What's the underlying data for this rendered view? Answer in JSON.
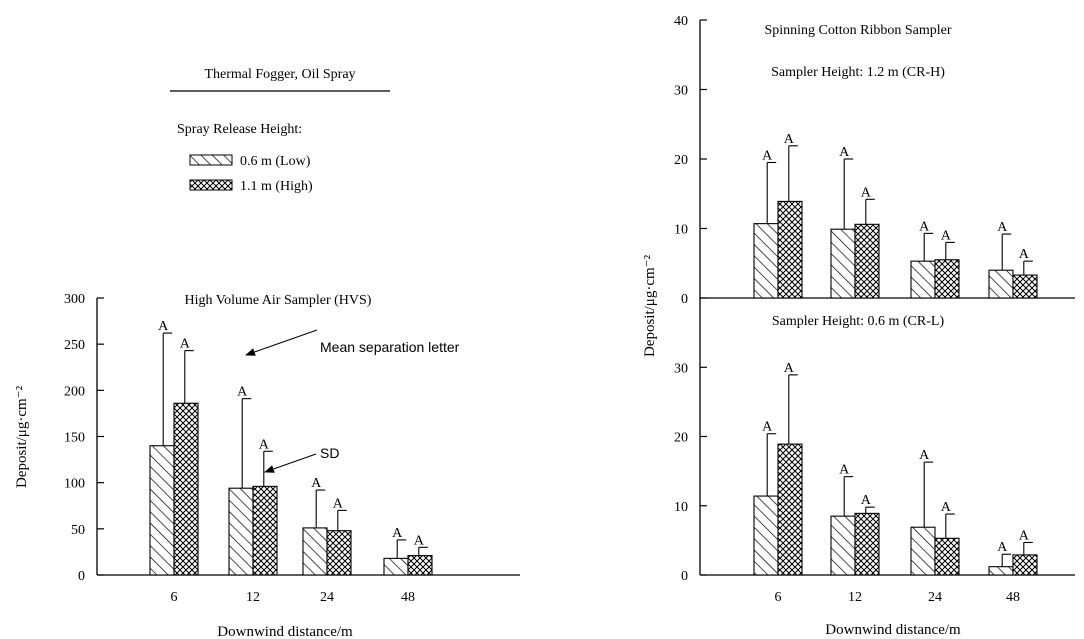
{
  "legend": {
    "title": "Thermal Fogger, Oil Spray",
    "subtitle": "Spray Release Height:",
    "items": [
      {
        "label": "0.6 m (Low)",
        "pattern": "hatch"
      },
      {
        "label": "1.1 m (High)",
        "pattern": "crosshatch"
      }
    ]
  },
  "annotations": {
    "mean_separation": "Mean separation letter",
    "sd": "SD"
  },
  "chart_data": [
    {
      "type": "bar",
      "title": "High Volume Air Sampler (HVS)",
      "xlabel": "Downwind distance/m",
      "ylabel": "Deposit/μg·cm⁻²",
      "categories": [
        "6",
        "12",
        "24",
        "48"
      ],
      "ylim": [
        0,
        300
      ],
      "yticks": [
        "0",
        "50",
        "100",
        "150",
        "200",
        "250",
        "300"
      ],
      "series": [
        {
          "name": "0.6 m (Low)",
          "values": [
            140,
            94,
            51,
            18
          ],
          "sd": [
            122,
            97,
            41,
            20
          ],
          "letters": [
            "A",
            "A",
            "A",
            "A"
          ]
        },
        {
          "name": "1.1 m (High)",
          "values": [
            186,
            96,
            48,
            21
          ],
          "sd": [
            57,
            38,
            22,
            9
          ],
          "letters": [
            "A",
            "A",
            "A",
            "A"
          ]
        }
      ]
    },
    {
      "type": "bar",
      "title": "Spinning Cotton Ribbon Sampler",
      "subtitle": "Sampler Height: 1.2 m (CR-H)",
      "xlabel": "",
      "ylabel": "Deposit/μg·cm⁻²",
      "categories": [
        "6",
        "12",
        "24",
        "48"
      ],
      "ylim": [
        0,
        40
      ],
      "yticks": [
        "0",
        "10",
        "20",
        "30",
        "40"
      ],
      "series": [
        {
          "name": "0.6 m (Low)",
          "values": [
            10.7,
            9.9,
            5.3,
            4.0
          ],
          "sd": [
            8.8,
            10.1,
            4.0,
            5.2
          ],
          "letters": [
            "A",
            "A",
            "A",
            "A"
          ]
        },
        {
          "name": "1.1 m (High)",
          "values": [
            13.9,
            10.6,
            5.5,
            3.3
          ],
          "sd": [
            8.0,
            3.6,
            2.5,
            2.0
          ],
          "letters": [
            "A",
            "A",
            "A",
            "A"
          ]
        }
      ]
    },
    {
      "type": "bar",
      "title": "Sampler Height: 0.6 m (CR-L)",
      "xlabel": "Downwind distance/m",
      "ylabel": "",
      "categories": [
        "6",
        "12",
        "24",
        "48"
      ],
      "ylim": [
        0,
        40
      ],
      "yticks": [
        "0",
        "10",
        "20",
        "30"
      ],
      "series": [
        {
          "name": "0.6 m (Low)",
          "values": [
            11.4,
            8.5,
            6.9,
            1.2
          ],
          "sd": [
            9.0,
            5.7,
            9.4,
            1.8
          ],
          "letters": [
            "A",
            "A",
            "A",
            "A"
          ]
        },
        {
          "name": "1.1 m (High)",
          "values": [
            18.9,
            8.9,
            5.3,
            2.9
          ],
          "sd": [
            10.0,
            0.9,
            3.5,
            1.8
          ],
          "letters": [
            "A",
            "A",
            "A",
            "A"
          ]
        }
      ]
    }
  ]
}
